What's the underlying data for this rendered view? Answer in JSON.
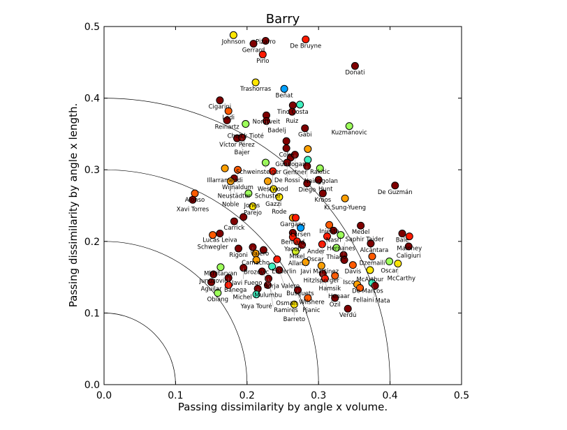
{
  "chart_data": {
    "type": "scatter",
    "title": "Barry",
    "xlabel": "Passing dissimilarity by angle x volume.",
    "ylabel": "Passing dissimilarity by angle x length.",
    "xlim": [
      0,
      0.5
    ],
    "ylim": [
      0,
      0.5
    ],
    "xticks": [
      "0.0",
      "0.1",
      "0.2",
      "0.3",
      "0.4",
      "0.5"
    ],
    "yticks": [
      "0.0",
      "0.1",
      "0.2",
      "0.3",
      "0.4",
      "0.5"
    ],
    "grid": false,
    "reference_arcs": [
      0.1,
      0.2,
      0.3,
      0.4
    ],
    "colors": {
      "D": "#7f0000",
      "R": "#ff1a00",
      "O2": "#ff5a00",
      "O": "#ffa000",
      "Y": "#ffe600",
      "Y2": "#d4f020",
      "G": "#9cff5a",
      "C": "#40f0c0",
      "B": "#00a0ff"
    },
    "points": [
      {
        "x": 0.181,
        "y": 0.488,
        "c": "Y",
        "label": "Johnson"
      },
      {
        "x": 0.209,
        "y": 0.476,
        "c": "D",
        "label": "Gerrard"
      },
      {
        "x": 0.226,
        "y": 0.48,
        "c": "D",
        "label": "Pizarro"
      },
      {
        "x": 0.282,
        "y": 0.482,
        "c": "R",
        "label": "De Bruyne"
      },
      {
        "x": 0.222,
        "y": 0.461,
        "c": "R",
        "label": "Pirlo"
      },
      {
        "x": 0.351,
        "y": 0.445,
        "c": "D",
        "label": "Donati"
      },
      {
        "x": 0.212,
        "y": 0.422,
        "c": "Y",
        "label": "Trashorras"
      },
      {
        "x": 0.252,
        "y": 0.413,
        "c": "B",
        "label": "Beñat"
      },
      {
        "x": 0.162,
        "y": 0.397,
        "c": "D",
        "label": "Cigarini"
      },
      {
        "x": 0.174,
        "y": 0.382,
        "c": "O2",
        "label": "Lodi"
      },
      {
        "x": 0.172,
        "y": 0.369,
        "c": "D",
        "label": "Reinartz"
      },
      {
        "x": 0.198,
        "y": 0.364,
        "c": "G",
        "label": "Cheick Tioté"
      },
      {
        "x": 0.186,
        "y": 0.344,
        "c": "D",
        "label": "Víctor Pérez"
      },
      {
        "x": 0.193,
        "y": 0.345,
        "c": "D",
        "label": "Bajer"
      },
      {
        "x": 0.264,
        "y": 0.39,
        "c": "D",
        "label": "Tino Costa"
      },
      {
        "x": 0.263,
        "y": 0.381,
        "c": "D",
        "label": "Ruiz"
      },
      {
        "x": 0.274,
        "y": 0.391,
        "c": "C",
        "label": ""
      },
      {
        "x": 0.227,
        "y": 0.376,
        "c": "D",
        "label": "Nordtveit"
      },
      {
        "x": 0.227,
        "y": 0.368,
        "c": "D",
        "label": "Badelj"
      },
      {
        "x": 0.281,
        "y": 0.358,
        "c": "D",
        "label": "Gabi"
      },
      {
        "x": 0.343,
        "y": 0.361,
        "c": "G",
        "label": "Kuzmanovic"
      },
      {
        "x": 0.255,
        "y": 0.34,
        "c": "D",
        "label": ""
      },
      {
        "x": 0.255,
        "y": 0.33,
        "c": "D",
        "label": "Coke"
      },
      {
        "x": 0.261,
        "y": 0.317,
        "c": "D",
        "label": "Gündogan"
      },
      {
        "x": 0.267,
        "y": 0.321,
        "c": "D",
        "label": "Gentner"
      },
      {
        "x": 0.285,
        "y": 0.329,
        "c": "O",
        "label": ""
      },
      {
        "x": 0.285,
        "y": 0.314,
        "c": "C",
        "label": ""
      },
      {
        "x": 0.256,
        "y": 0.31,
        "c": "D",
        "label": "De Rossi"
      },
      {
        "x": 0.284,
        "y": 0.305,
        "c": "D",
        "label": "Nainggolan"
      },
      {
        "x": 0.302,
        "y": 0.302,
        "c": "G",
        "label": "Rakitic"
      },
      {
        "x": 0.226,
        "y": 0.31,
        "c": "G",
        "label": "Schweinsteiger"
      },
      {
        "x": 0.169,
        "y": 0.302,
        "c": "O",
        "label": "Illarramendi"
      },
      {
        "x": 0.187,
        "y": 0.3,
        "c": "O2",
        "label": "Wijnaldum"
      },
      {
        "x": 0.236,
        "y": 0.298,
        "c": "R",
        "label": "Westwood"
      },
      {
        "x": 0.182,
        "y": 0.288,
        "c": "D",
        "label": "Neustädter"
      },
      {
        "x": 0.177,
        "y": 0.284,
        "c": "O",
        "label": "Noble"
      },
      {
        "x": 0.229,
        "y": 0.284,
        "c": "O",
        "label": "Schuster"
      },
      {
        "x": 0.237,
        "y": 0.273,
        "c": "Y",
        "label": "Gazzi"
      },
      {
        "x": 0.245,
        "y": 0.262,
        "c": "Y",
        "label": "Rode"
      },
      {
        "x": 0.202,
        "y": 0.267,
        "c": "G",
        "label": "Jones"
      },
      {
        "x": 0.284,
        "y": 0.281,
        "c": "D",
        "label": "Diego"
      },
      {
        "x": 0.3,
        "y": 0.286,
        "c": "D",
        "label": "Hunt"
      },
      {
        "x": 0.306,
        "y": 0.267,
        "c": "D",
        "label": "Kroos"
      },
      {
        "x": 0.337,
        "y": 0.26,
        "c": "O",
        "label": "Ki Sung-Yueng"
      },
      {
        "x": 0.407,
        "y": 0.278,
        "c": "D",
        "label": "De Guzmán"
      },
      {
        "x": 0.127,
        "y": 0.267,
        "c": "O2",
        "label": "Alonso"
      },
      {
        "x": 0.124,
        "y": 0.258,
        "c": "D",
        "label": "Xavi Torres"
      },
      {
        "x": 0.208,
        "y": 0.249,
        "c": "Y",
        "label": "Parejo"
      },
      {
        "x": 0.195,
        "y": 0.234,
        "c": "D",
        "label": ""
      },
      {
        "x": 0.182,
        "y": 0.228,
        "c": "D",
        "label": "Carrick"
      },
      {
        "x": 0.162,
        "y": 0.211,
        "c": "D",
        "label": "Lucas Leiva"
      },
      {
        "x": 0.152,
        "y": 0.209,
        "c": "O2",
        "label": "Schwegler"
      },
      {
        "x": 0.264,
        "y": 0.233,
        "c": "O",
        "label": "Gargano"
      },
      {
        "x": 0.268,
        "y": 0.233,
        "c": "R",
        "label": ""
      },
      {
        "x": 0.275,
        "y": 0.219,
        "c": "B",
        "label": "Larsen"
      },
      {
        "x": 0.264,
        "y": 0.212,
        "c": "D",
        "label": "Bernard"
      },
      {
        "x": 0.264,
        "y": 0.206,
        "c": "R",
        "label": "Yacob"
      },
      {
        "x": 0.27,
        "y": 0.2,
        "c": "R",
        "label": "Mikel"
      },
      {
        "x": 0.277,
        "y": 0.195,
        "c": "D",
        "label": "Ander"
      },
      {
        "x": 0.268,
        "y": 0.186,
        "c": "Y2",
        "label": "Allan"
      },
      {
        "x": 0.188,
        "y": 0.19,
        "c": "D",
        "label": "Rigoni"
      },
      {
        "x": 0.208,
        "y": 0.192,
        "c": "D",
        "label": "Valero"
      },
      {
        "x": 0.212,
        "y": 0.183,
        "c": "O",
        "label": "Camacho"
      },
      {
        "x": 0.213,
        "y": 0.174,
        "c": "O",
        "label": "Brozovic"
      },
      {
        "x": 0.223,
        "y": 0.188,
        "c": "D",
        "label": ""
      },
      {
        "x": 0.242,
        "y": 0.175,
        "c": "R",
        "label": "Enderlin"
      },
      {
        "x": 0.235,
        "y": 0.165,
        "c": "C",
        "label": ""
      },
      {
        "x": 0.163,
        "y": 0.164,
        "c": "G",
        "label": "Mkhitaryan"
      },
      {
        "x": 0.153,
        "y": 0.154,
        "c": "D",
        "label": "Junuzovic"
      },
      {
        "x": 0.159,
        "y": 0.128,
        "c": "G",
        "label": "Obiang"
      },
      {
        "x": 0.15,
        "y": 0.143,
        "c": "D",
        "label": "Aguilar"
      },
      {
        "x": 0.174,
        "y": 0.149,
        "c": "D",
        "label": "Banega"
      },
      {
        "x": 0.174,
        "y": 0.139,
        "c": "R",
        "label": "Michel"
      },
      {
        "x": 0.195,
        "y": 0.163,
        "c": "D",
        "label": "Javi Fuego"
      },
      {
        "x": 0.215,
        "y": 0.134,
        "c": "D",
        "label": "Mulumbu"
      },
      {
        "x": 0.213,
        "y": 0.126,
        "c": "C",
        "label": "Yaya Touré"
      },
      {
        "x": 0.229,
        "y": 0.139,
        "c": "D",
        "label": "Borja Valero"
      },
      {
        "x": 0.221,
        "y": 0.158,
        "c": "D",
        "label": "Osman"
      },
      {
        "x": 0.245,
        "y": 0.16,
        "c": "D",
        "label": "Busquets"
      },
      {
        "x": 0.23,
        "y": 0.148,
        "c": "D",
        "label": "Ramires"
      },
      {
        "x": 0.271,
        "y": 0.132,
        "c": "D",
        "label": "Wilshere"
      },
      {
        "x": 0.285,
        "y": 0.121,
        "c": "O2",
        "label": "Pjanic"
      },
      {
        "x": 0.266,
        "y": 0.112,
        "c": "Y",
        "label": "Barreto"
      },
      {
        "x": 0.282,
        "y": 0.171,
        "c": "O",
        "label": "Javi Martínez"
      },
      {
        "x": 0.304,
        "y": 0.166,
        "c": "O",
        "label": "Hitzlsperger"
      },
      {
        "x": 0.306,
        "y": 0.155,
        "c": "D",
        "label": "Hamsik"
      },
      {
        "x": 0.309,
        "y": 0.148,
        "c": "R",
        "label": "Henaar"
      },
      {
        "x": 0.323,
        "y": 0.152,
        "c": "O2",
        "label": "Isco"
      },
      {
        "x": 0.348,
        "y": 0.167,
        "c": "O2",
        "label": "Davis"
      },
      {
        "x": 0.372,
        "y": 0.16,
        "c": "Y",
        "label": "McArthur"
      },
      {
        "x": 0.354,
        "y": 0.14,
        "c": "O",
        "label": "De Marcos"
      },
      {
        "x": 0.358,
        "y": 0.135,
        "c": "O2",
        "label": "Fellaini"
      },
      {
        "x": 0.375,
        "y": 0.142,
        "c": "C",
        "label": "Mata"
      },
      {
        "x": 0.379,
        "y": 0.138,
        "c": "D",
        "label": ""
      },
      {
        "x": 0.323,
        "y": 0.121,
        "c": "D",
        "label": "Özil"
      },
      {
        "x": 0.341,
        "y": 0.106,
        "c": "D",
        "label": "Verdú"
      },
      {
        "x": 0.315,
        "y": 0.223,
        "c": "O2",
        "label": "Iniesta"
      },
      {
        "x": 0.359,
        "y": 0.222,
        "c": "D",
        "label": "Medel"
      },
      {
        "x": 0.321,
        "y": 0.215,
        "c": "D",
        "label": "Nasri"
      },
      {
        "x": 0.312,
        "y": 0.207,
        "c": "R",
        "label": "Hernanes"
      },
      {
        "x": 0.331,
        "y": 0.209,
        "c": "G",
        "label": ""
      },
      {
        "x": 0.325,
        "y": 0.191,
        "c": "G",
        "label": "Thiago"
      },
      {
        "x": 0.305,
        "y": 0.196,
        "c": "R",
        "label": "Oscar"
      },
      {
        "x": 0.373,
        "y": 0.197,
        "c": "D",
        "label": "Alcântara"
      },
      {
        "x": 0.375,
        "y": 0.179,
        "c": "O2",
        "label": "Dzemaili"
      },
      {
        "x": 0.335,
        "y": 0.181,
        "c": "D",
        "label": "Saphir Taider"
      },
      {
        "x": 0.336,
        "y": 0.174,
        "c": "D",
        "label": ""
      },
      {
        "x": 0.399,
        "y": 0.172,
        "c": "G",
        "label": "Oscar"
      },
      {
        "x": 0.411,
        "y": 0.169,
        "c": "Y",
        "label": "McCarthy"
      },
      {
        "x": 0.417,
        "y": 0.211,
        "c": "D",
        "label": "Bale"
      },
      {
        "x": 0.427,
        "y": 0.207,
        "c": "R",
        "label": "Maloney"
      },
      {
        "x": 0.426,
        "y": 0.193,
        "c": "D",
        "label": "Caligiuri"
      }
    ]
  }
}
